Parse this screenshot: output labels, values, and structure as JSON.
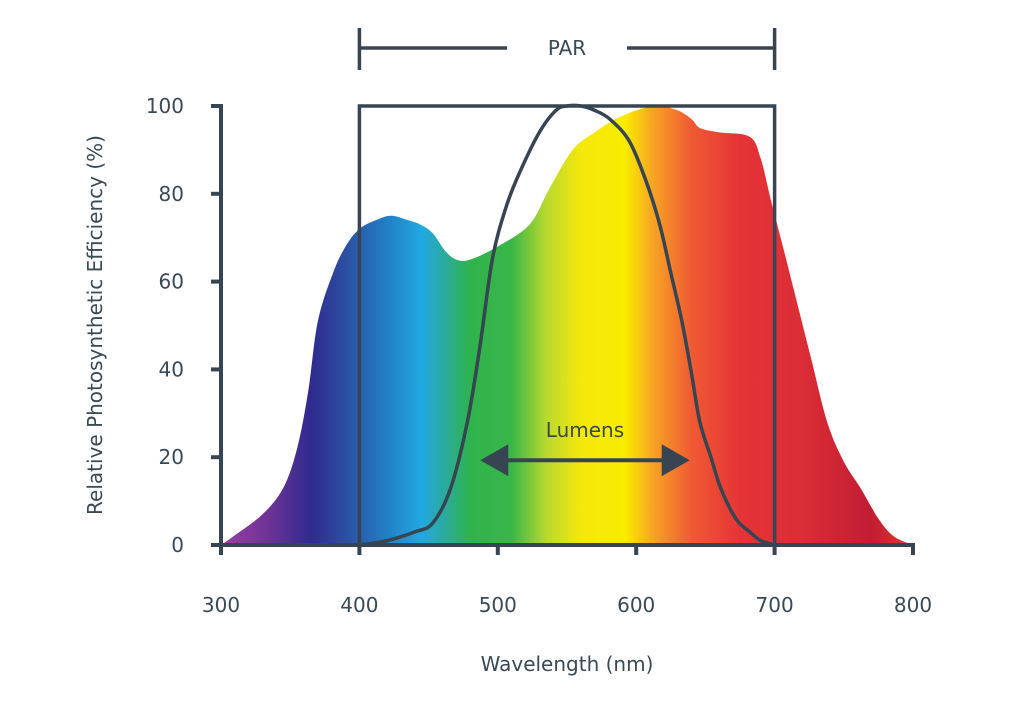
{
  "chart_data": {
    "type": "area",
    "title": "",
    "xlabel": "Wavelength (nm)",
    "ylabel": "Relative Photosynthetic Efficiency (%)",
    "xlim": [
      300,
      800
    ],
    "ylim": [
      0,
      100
    ],
    "xticks": [
      300,
      400,
      500,
      600,
      700,
      800
    ],
    "yticks": [
      0,
      20,
      40,
      60,
      80,
      100
    ],
    "grid": false,
    "series": [
      {
        "kind": "filled-area-spectrum-gradient",
        "x": [
          300,
          309,
          330,
          345,
          355,
          363,
          370,
          381,
          390,
          400,
          412,
          423,
          435,
          444,
          453,
          462,
          470,
          480,
          500,
          523,
          537,
          554,
          570,
          585,
          600,
          615,
          630,
          640,
          646,
          660,
          682,
          690,
          697,
          706,
          714,
          726,
          738,
          750,
          762,
          775,
          786,
          800
        ],
        "y": [
          0,
          2,
          7,
          13,
          22,
          35,
          51,
          62,
          68,
          72,
          74,
          75,
          74,
          73,
          71,
          67,
          65,
          65,
          68,
          73,
          81,
          90,
          94,
          97,
          99,
          100,
          99,
          97,
          95,
          94,
          93,
          88,
          79,
          68,
          58,
          43,
          28,
          19,
          13,
          6,
          2,
          0
        ]
      },
      {
        "name": "Lumens",
        "kind": "line",
        "x": [
          400,
          420,
          440,
          453,
          466,
          478,
          487,
          496,
          506,
          516,
          530,
          542,
          550,
          560,
          570,
          581,
          595,
          607,
          617,
          625,
          633,
          640,
          646,
          654,
          661,
          672,
          682,
          690,
          700
        ],
        "y": [
          0,
          1,
          3,
          5,
          13,
          28,
          45,
          65,
          77,
          85,
          94,
          99,
          100,
          100,
          99,
          97,
          92,
          83,
          73,
          62,
          51,
          39,
          28,
          20,
          13,
          6,
          3,
          1,
          0
        ]
      }
    ],
    "annotations": {
      "par": {
        "label": "PAR",
        "range": [
          400,
          700
        ],
        "box_top": 100
      },
      "lumens": {
        "label": "Lumens",
        "arrow_range": [
          483,
          643
        ],
        "arrow_y": 20
      }
    },
    "gradient_stops": [
      {
        "nm": 300,
        "color": "#9b3fa0"
      },
      {
        "nm": 335,
        "color": "#6c3396"
      },
      {
        "nm": 365,
        "color": "#2f2a8e"
      },
      {
        "nm": 390,
        "color": "#2d4fa2"
      },
      {
        "nm": 420,
        "color": "#2180c6"
      },
      {
        "nm": 445,
        "color": "#22a8e0"
      },
      {
        "nm": 462,
        "color": "#2aab9c"
      },
      {
        "nm": 480,
        "color": "#2fb34c"
      },
      {
        "nm": 510,
        "color": "#3ab648"
      },
      {
        "nm": 535,
        "color": "#b9d92e"
      },
      {
        "nm": 560,
        "color": "#f5e80b"
      },
      {
        "nm": 592,
        "color": "#f9ec00"
      },
      {
        "nm": 612,
        "color": "#f7a424"
      },
      {
        "nm": 640,
        "color": "#ef5a33"
      },
      {
        "nm": 675,
        "color": "#e53436"
      },
      {
        "nm": 720,
        "color": "#da2d36"
      },
      {
        "nm": 770,
        "color": "#c11d33"
      },
      {
        "nm": 800,
        "color": "#e33a2f"
      }
    ],
    "colors": {
      "axis": "#364551",
      "text": "#3a4a55"
    }
  }
}
